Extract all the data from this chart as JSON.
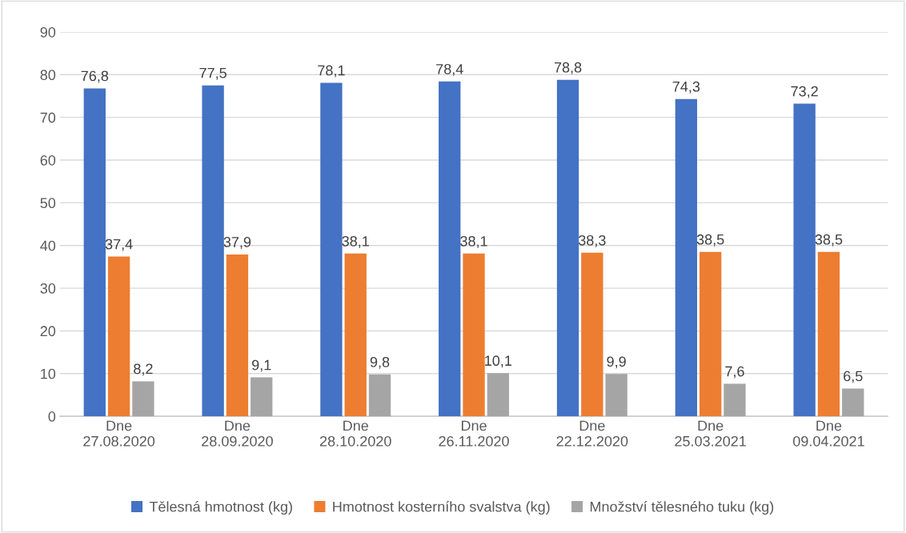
{
  "chart_data": {
    "type": "bar",
    "categories": [
      "Dne\n27.08.2020",
      "Dne\n28.09.2020",
      "Dne\n28.10.2020",
      "Dne\n26.11.2020",
      "Dne\n22.12.2020",
      "Dne\n25.03.2021",
      "Dne\n09.04.2021"
    ],
    "series": [
      {
        "name": "Tělesná hmotnost (kg)",
        "color": "#4472c4",
        "values": [
          76.8,
          77.5,
          78.1,
          78.4,
          78.8,
          74.3,
          73.2
        ],
        "value_labels": [
          "76,8",
          "77,5",
          "78,1",
          "78,4",
          "78,8",
          "74,3",
          "73,2"
        ]
      },
      {
        "name": "Hmotnost kosterního svalstva (kg)",
        "color": "#ed7d31",
        "values": [
          37.4,
          37.9,
          38.1,
          38.1,
          38.3,
          38.5,
          38.5
        ],
        "value_labels": [
          "37,4",
          "37,9",
          "38,1",
          "38,1",
          "38,3",
          "38,5",
          "38,5"
        ]
      },
      {
        "name": "Množství tělesného tuku (kg)",
        "color": "#a5a5a5",
        "values": [
          8.2,
          9.1,
          9.8,
          10.1,
          9.9,
          7.6,
          6.5
        ],
        "value_labels": [
          "8,2",
          "9,1",
          "9,8",
          "10,1",
          "9,9",
          "7,6",
          "6,5"
        ]
      }
    ],
    "ylim": [
      0,
      90
    ],
    "yticks": [
      0,
      10,
      20,
      30,
      40,
      50,
      60,
      70,
      80,
      90
    ],
    "grid": "y",
    "legend": "bottom"
  }
}
